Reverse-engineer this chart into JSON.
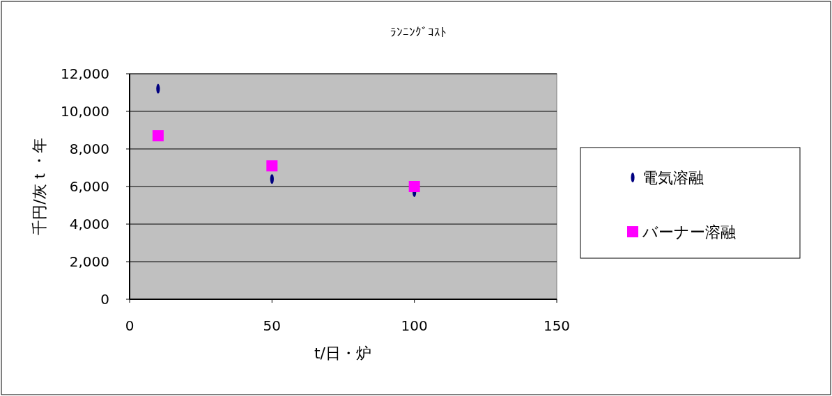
{
  "chart_data": {
    "type": "scatter",
    "title": "ﾗﾝﾆﾝｸﾞｺｽﾄ",
    "xlabel": "t/日・炉",
    "ylabel": "千円/灰ｔ・年",
    "x": [
      10,
      50,
      100
    ],
    "series": [
      {
        "name": "電気溶融",
        "color": "#000080",
        "values": [
          11200,
          6400,
          5700
        ]
      },
      {
        "name": "バーナー溶融",
        "color": "#ff00ff",
        "marker": "square",
        "values": [
          8700,
          7100,
          6000
        ]
      }
    ],
    "xlim": [
      0,
      150
    ],
    "xticks": [
      0,
      50,
      100,
      150
    ],
    "ylim": [
      0,
      12000
    ],
    "yticks": [
      {
        "value": 0,
        "label": "0"
      },
      {
        "value": 2000,
        "label": "2,000"
      },
      {
        "value": 4000,
        "label": "4,000"
      },
      {
        "value": 6000,
        "label": "6,000"
      },
      {
        "value": 8000,
        "label": "8,000"
      },
      {
        "value": 10000,
        "label": "10,000"
      },
      {
        "value": 12000,
        "label": "12,000"
      }
    ],
    "grid": "y",
    "legend": "right"
  }
}
